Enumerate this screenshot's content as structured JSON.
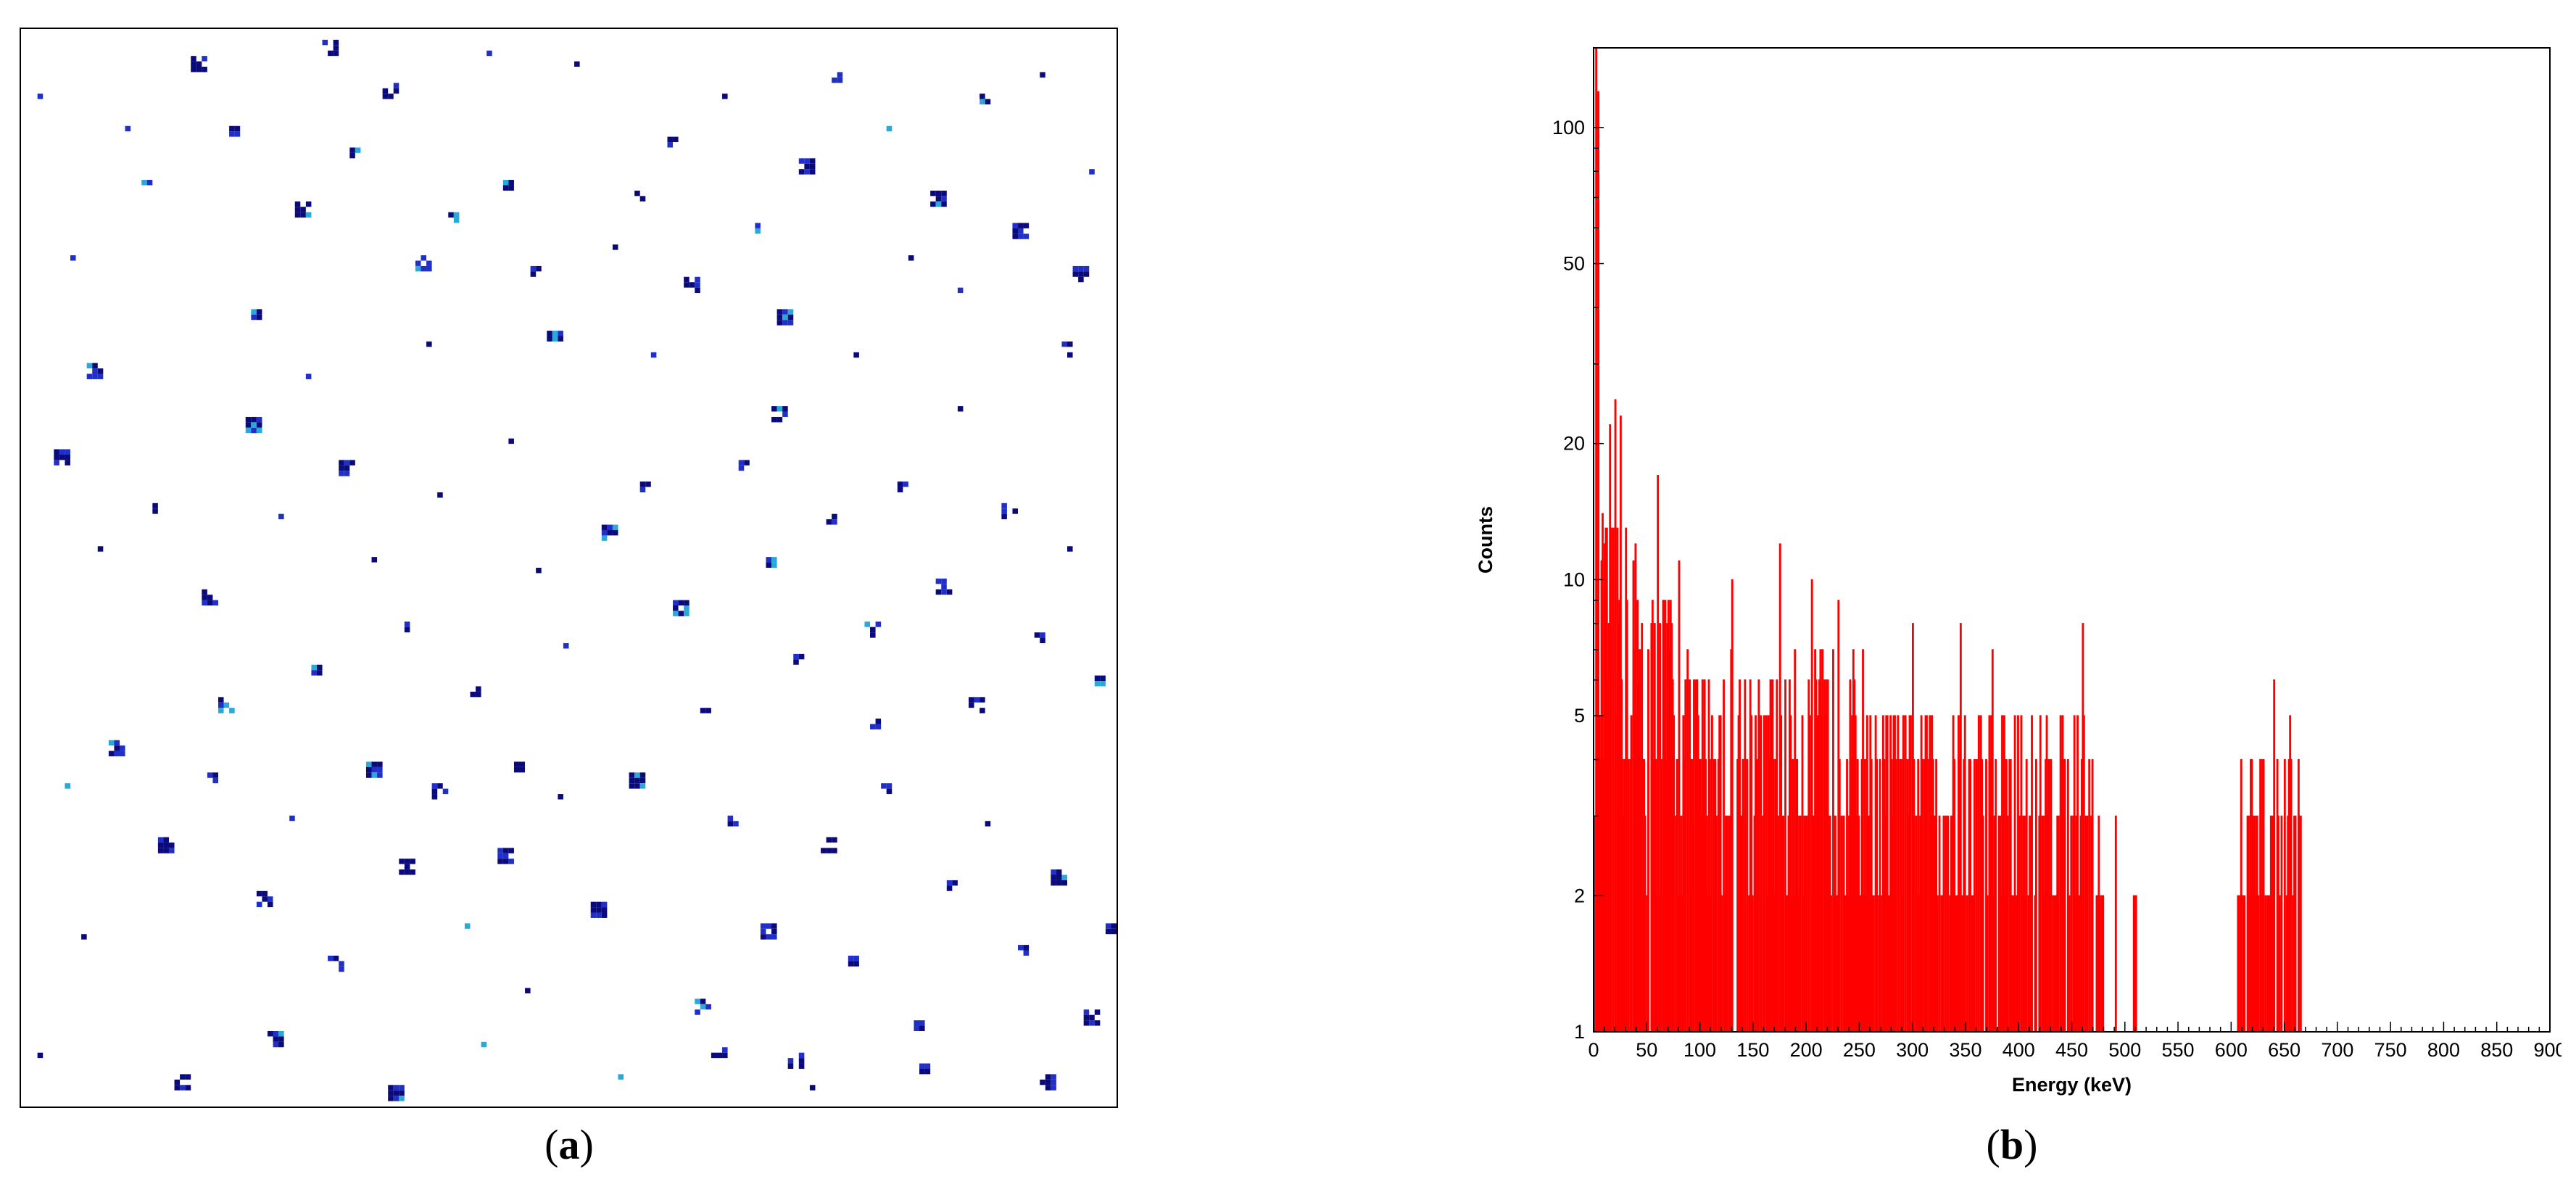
{
  "panels": {
    "a": {
      "caption_open": "(",
      "caption_letter": "a",
      "caption_close": ")"
    },
    "b": {
      "caption_open": "(",
      "caption_letter": "b",
      "caption_close": ")"
    }
  },
  "colors": {
    "hit_dark": "#0a0a7a",
    "hit_mid": "#1f2fc8",
    "hit_light": "#2aa8d8",
    "histogram": "#ff0000",
    "axis": "#000000"
  },
  "chart_data": [
    {
      "type": "heatmap",
      "description_visible": "detector hit map",
      "grid": [
        200,
        200
      ],
      "hits": [
        [
          3,
          12
        ],
        [
          9,
          42
        ],
        [
          19,
          18
        ],
        [
          22,
          28
        ],
        [
          12,
          62
        ],
        [
          31,
          5
        ],
        [
          38,
          18
        ],
        [
          42,
          52
        ],
        [
          50,
          32
        ],
        [
          55,
          2
        ],
        [
          60,
          22
        ],
        [
          66,
          10
        ],
        [
          72,
          42
        ],
        [
          78,
          34
        ],
        [
          85,
          4
        ],
        [
          88,
          28
        ],
        [
          93,
          44
        ],
        [
          96,
          56
        ],
        [
          101,
          6
        ],
        [
          108,
          40
        ],
        [
          112,
          30
        ],
        [
          118,
          20
        ],
        [
          121,
          46
        ],
        [
          128,
          12
        ],
        [
          133,
          36
        ],
        [
          138,
          52
        ],
        [
          142,
          24
        ],
        [
          148,
          8
        ],
        [
          152,
          60
        ],
        [
          158,
          18
        ],
        [
          162,
          42
        ],
        [
          166,
          30
        ],
        [
          171,
          48
        ],
        [
          175,
          12
        ],
        [
          181,
          36
        ],
        [
          186,
          8
        ],
        [
          190,
          58
        ],
        [
          195,
          26
        ],
        [
          6,
          78
        ],
        [
          14,
          96
        ],
        [
          24,
          88
        ],
        [
          33,
          104
        ],
        [
          41,
          72
        ],
        [
          47,
          90
        ],
        [
          53,
          118
        ],
        [
          58,
          80
        ],
        [
          64,
          98
        ],
        [
          70,
          110
        ],
        [
          76,
          86
        ],
        [
          82,
          122
        ],
        [
          89,
          76
        ],
        [
          94,
          100
        ],
        [
          99,
          114
        ],
        [
          106,
          92
        ],
        [
          113,
          84
        ],
        [
          119,
          106
        ],
        [
          124,
          126
        ],
        [
          131,
          80
        ],
        [
          136,
          98
        ],
        [
          141,
          116
        ],
        [
          147,
          90
        ],
        [
          154,
          110
        ],
        [
          160,
          84
        ],
        [
          167,
          102
        ],
        [
          173,
          124
        ],
        [
          179,
          88
        ],
        [
          185,
          112
        ],
        [
          191,
          96
        ],
        [
          196,
          120
        ],
        [
          8,
          140
        ],
        [
          16,
          132
        ],
        [
          25,
          150
        ],
        [
          34,
          138
        ],
        [
          43,
          160
        ],
        [
          49,
          146
        ],
        [
          56,
          172
        ],
        [
          63,
          136
        ],
        [
          69,
          154
        ],
        [
          75,
          140
        ],
        [
          81,
          166
        ],
        [
          87,
          152
        ],
        [
          92,
          178
        ],
        [
          98,
          142
        ],
        [
          104,
          162
        ],
        [
          111,
          138
        ],
        [
          117,
          156
        ],
        [
          123,
          180
        ],
        [
          129,
          146
        ],
        [
          135,
          166
        ],
        [
          140,
          190
        ],
        [
          146,
          150
        ],
        [
          151,
          172
        ],
        [
          157,
          140
        ],
        [
          163,
          184
        ],
        [
          169,
          158
        ],
        [
          176,
          146
        ],
        [
          182,
          170
        ],
        [
          188,
          156
        ],
        [
          194,
          182
        ],
        [
          198,
          166
        ],
        [
          28,
          194
        ],
        [
          45,
          186
        ],
        [
          67,
          196
        ],
        [
          84,
          188
        ],
        [
          109,
          194
        ],
        [
          126,
          188
        ],
        [
          144,
          196
        ],
        [
          164,
          192
        ],
        [
          186,
          194
        ],
        [
          11,
          168
        ],
        [
          36,
          124
        ],
        [
          52,
          64
        ],
        [
          74,
          58
        ],
        [
          90,
          136
        ],
        [
          115,
          60
        ],
        [
          137,
          70
        ],
        [
          155,
          128
        ],
        [
          171,
          70
        ],
        [
          192,
          44
        ],
        [
          3,
          190
        ]
      ]
    },
    {
      "type": "bar",
      "xlabel": "Energy (keV)",
      "ylabel": "Counts",
      "xlim": [
        0,
        900
      ],
      "ylim": [
        1,
        150
      ],
      "yscale": "log",
      "x_ticks": [
        0,
        50,
        100,
        150,
        200,
        250,
        300,
        350,
        400,
        450,
        500,
        550,
        600,
        650,
        700,
        750,
        800,
        850,
        900
      ],
      "y_ticks": [
        1,
        2,
        5,
        10,
        20,
        50,
        100
      ],
      "bin_width_keV": 1,
      "nonzero_ranges": [
        [
          0,
          480
        ],
        [
          490,
          492
        ],
        [
          508,
          510
        ],
        [
          605,
          665
        ]
      ],
      "peak_bins": [
        {
          "energy": 2,
          "counts": 150
        },
        {
          "energy": 4,
          "counts": 120
        },
        {
          "energy": 8,
          "counts": 14
        },
        {
          "energy": 15,
          "counts": 22
        },
        {
          "energy": 20,
          "counts": 25
        },
        {
          "energy": 25,
          "counts": 23
        },
        {
          "energy": 60,
          "counts": 17
        },
        {
          "energy": 80,
          "counts": 11
        },
        {
          "energy": 130,
          "counts": 10
        },
        {
          "energy": 175,
          "counts": 12
        },
        {
          "energy": 205,
          "counts": 10
        },
        {
          "energy": 230,
          "counts": 9
        },
        {
          "energy": 300,
          "counts": 8
        },
        {
          "energy": 345,
          "counts": 8
        },
        {
          "energy": 375,
          "counts": 7
        },
        {
          "energy": 460,
          "counts": 8
        },
        {
          "energy": 475,
          "counts": 3
        },
        {
          "energy": 510,
          "counts": 2
        },
        {
          "energy": 640,
          "counts": 6
        },
        {
          "energy": 655,
          "counts": 5
        },
        {
          "energy": 660,
          "counts": 3
        }
      ]
    }
  ]
}
